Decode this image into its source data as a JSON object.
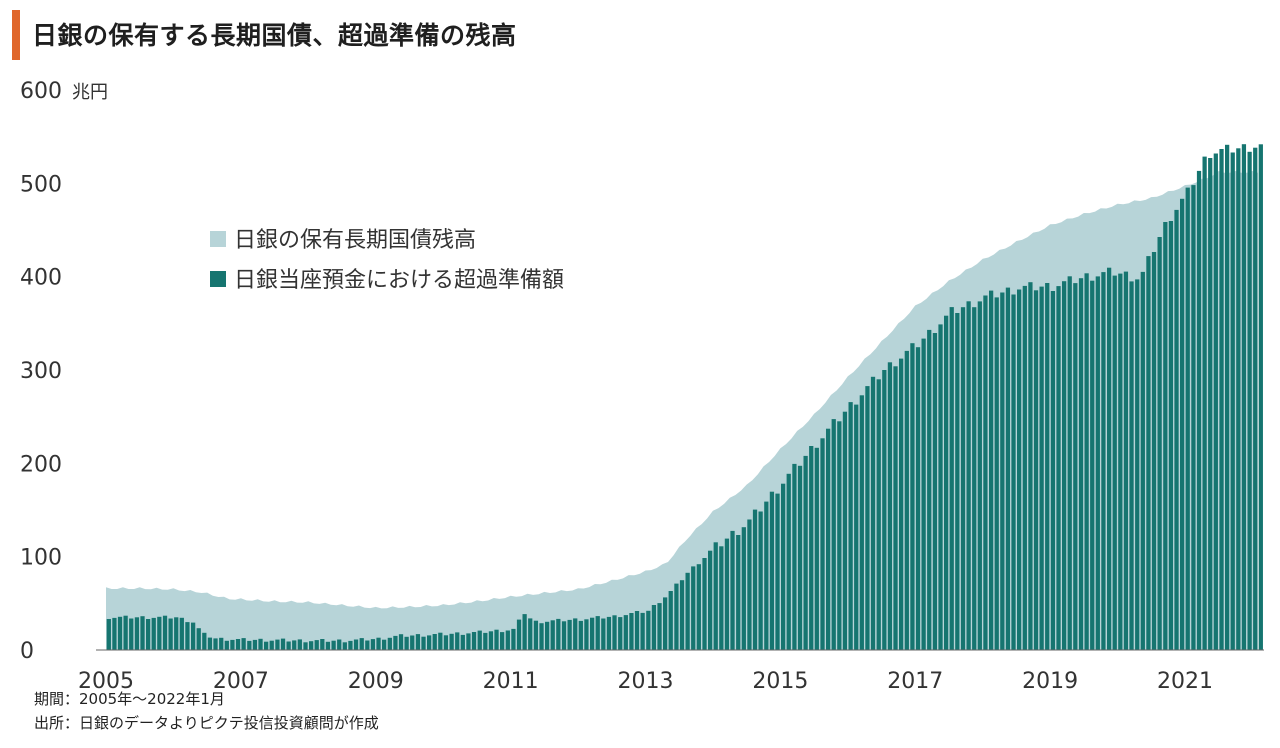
{
  "title": "日銀の保有する長期国債、超過準備の残高",
  "notes": {
    "period": "期間：2005年～2022年1月",
    "source": "出所：日銀のデータよりピクテ投信投資顧問が作成"
  },
  "colors": {
    "accent": "#e0672b",
    "area": "#b7d4d8",
    "bars": "#167570"
  },
  "chart_data": {
    "type": "area",
    "unit_label": "兆円",
    "ylim": [
      0,
      600
    ],
    "yticks": [
      0,
      100,
      200,
      300,
      400,
      500,
      600
    ],
    "xlim": [
      2005,
      2022.083
    ],
    "xtick_labels": [
      "2005",
      "2007",
      "2009",
      "2011",
      "2013",
      "2015",
      "2017",
      "2019",
      "2021"
    ],
    "legend": [
      "日銀の保有長期国債残高",
      "日銀当座預金における超過準備額"
    ],
    "series": [
      {
        "name": "日銀の保有長期国債残高",
        "type": "area",
        "points": [
          [
            2005.0,
            66
          ],
          [
            2005.5,
            66
          ],
          [
            2006.0,
            65
          ],
          [
            2006.4,
            62
          ],
          [
            2006.8,
            55
          ],
          [
            2007.5,
            52
          ],
          [
            2008.0,
            51
          ],
          [
            2008.5,
            48
          ],
          [
            2009.0,
            45
          ],
          [
            2009.5,
            46
          ],
          [
            2010.0,
            48
          ],
          [
            2010.5,
            52
          ],
          [
            2011.0,
            57
          ],
          [
            2011.5,
            61
          ],
          [
            2012.0,
            65
          ],
          [
            2012.5,
            74
          ],
          [
            2013.0,
            84
          ],
          [
            2013.3,
            92
          ],
          [
            2013.6,
            118
          ],
          [
            2014.0,
            148
          ],
          [
            2014.5,
            176
          ],
          [
            2015.0,
            215
          ],
          [
            2015.5,
            252
          ],
          [
            2016.0,
            292
          ],
          [
            2016.5,
            330
          ],
          [
            2017.0,
            368
          ],
          [
            2017.5,
            395
          ],
          [
            2018.0,
            418
          ],
          [
            2018.5,
            437
          ],
          [
            2019.0,
            455
          ],
          [
            2019.5,
            467
          ],
          [
            2020.0,
            477
          ],
          [
            2020.5,
            484
          ],
          [
            2021.0,
            497
          ],
          [
            2021.3,
            505
          ],
          [
            2021.5,
            512
          ],
          [
            2022.0,
            512
          ]
        ]
      },
      {
        "name": "日銀当座預金における超過準備額",
        "type": "bar",
        "points": [
          [
            2005.0,
            35
          ],
          [
            2006.0,
            35
          ],
          [
            2006.25,
            30
          ],
          [
            2006.4,
            17
          ],
          [
            2006.6,
            12
          ],
          [
            2007.0,
            11
          ],
          [
            2008.0,
            10
          ],
          [
            2008.5,
            10
          ],
          [
            2009.0,
            12
          ],
          [
            2009.3,
            15
          ],
          [
            2010.0,
            17
          ],
          [
            2010.5,
            19
          ],
          [
            2011.0,
            22
          ],
          [
            2011.17,
            40
          ],
          [
            2011.3,
            30
          ],
          [
            2012.0,
            33
          ],
          [
            2012.5,
            36
          ],
          [
            2013.0,
            42
          ],
          [
            2013.3,
            60
          ],
          [
            2013.6,
            84
          ],
          [
            2014.0,
            110
          ],
          [
            2014.5,
            138
          ],
          [
            2015.0,
            180
          ],
          [
            2015.5,
            222
          ],
          [
            2016.0,
            262
          ],
          [
            2016.5,
            300
          ],
          [
            2017.0,
            328
          ],
          [
            2017.5,
            362
          ],
          [
            2018.0,
            378
          ],
          [
            2018.5,
            388
          ],
          [
            2019.0,
            390
          ],
          [
            2019.5,
            400
          ],
          [
            2019.9,
            405
          ],
          [
            2020.3,
            398
          ],
          [
            2020.5,
            430
          ],
          [
            2020.7,
            460
          ],
          [
            2021.0,
            490
          ],
          [
            2021.3,
            532
          ],
          [
            2021.5,
            535
          ],
          [
            2022.0,
            540
          ]
        ]
      }
    ]
  }
}
